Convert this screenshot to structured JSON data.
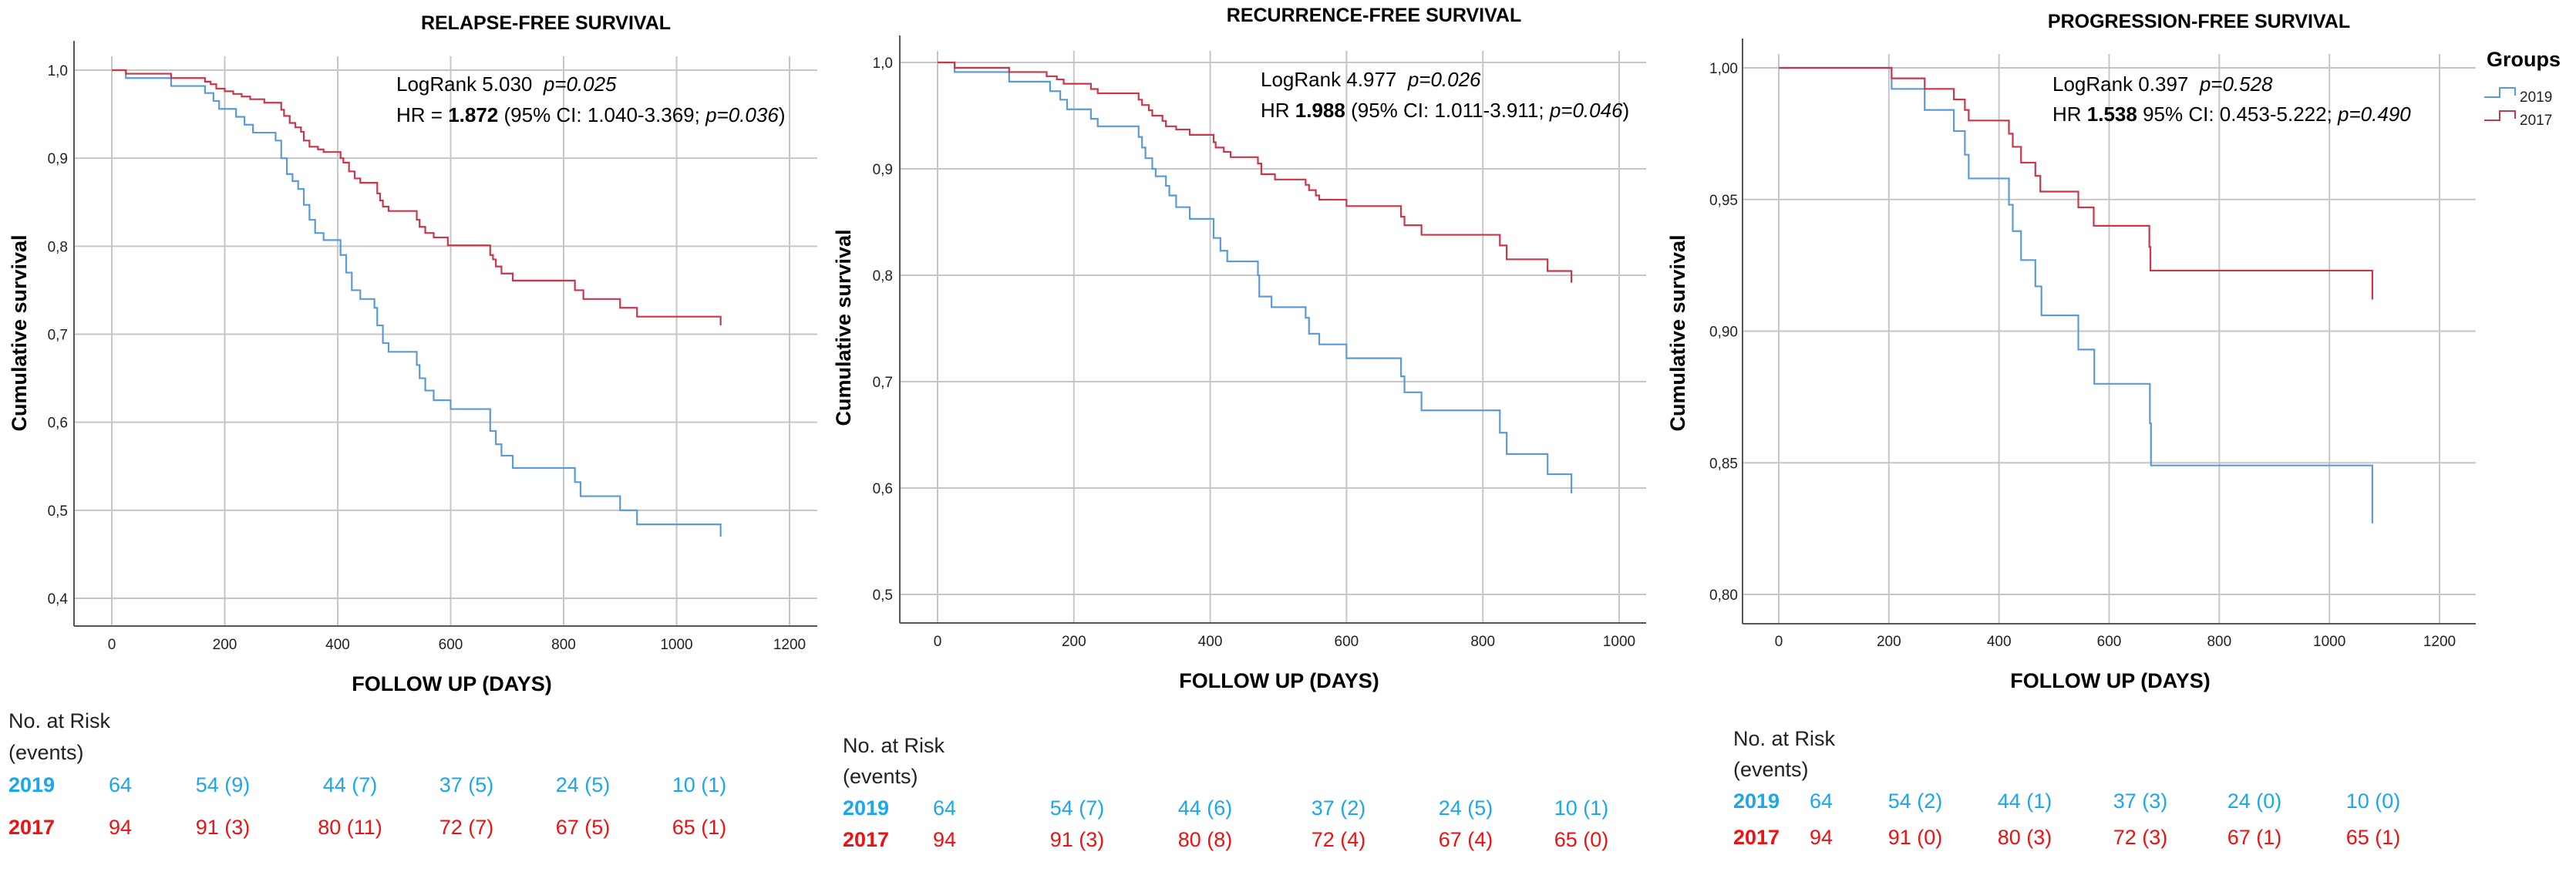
{
  "chart_data": [
    {
      "type": "line",
      "subtype": "kaplan-meier step",
      "title": "RELAPSE-FREE SURVIVAL",
      "xlabel": "FOLLOW UP (DAYS)",
      "ylabel": "Cumulative survival",
      "xlim": [
        0,
        1200
      ],
      "ylim": [
        0.4,
        1.0
      ],
      "xticks": [
        "0",
        "200",
        "400",
        "600",
        "800",
        "1000",
        "1200"
      ],
      "xtick_values": [
        0,
        200,
        400,
        600,
        800,
        1000,
        1200
      ],
      "yticks": [
        "1,0",
        "0,9",
        "0,8",
        "0,7",
        "0,6",
        "0,5",
        "0,4"
      ],
      "ytick_values": [
        1.0,
        0.9,
        0.8,
        0.7,
        0.6,
        0.5,
        0.4
      ],
      "grid": true,
      "annotation": [
        [
          {
            "t": "LogRank 5.030  "
          },
          {
            "t": "p=0.025",
            "i": true
          }
        ],
        [
          {
            "t": "HR = "
          },
          {
            "t": "1.872",
            "b": true
          },
          {
            "t": " (95% CI: 1.040-3.369; "
          },
          {
            "t": "p=0.036",
            "i": true
          },
          {
            "t": ")"
          }
        ]
      ],
      "series": [
        {
          "name": "2019",
          "color": "#5b9bd5",
          "end": [
            1078,
            0.47
          ],
          "steps": [
            [
              0,
              1.0
            ],
            [
              25,
              0.991
            ],
            [
              105,
              0.982
            ],
            [
              165,
              0.974
            ],
            [
              180,
              0.965
            ],
            [
              190,
              0.956
            ],
            [
              220,
              0.947
            ],
            [
              235,
              0.938
            ],
            [
              250,
              0.929
            ],
            [
              290,
              0.92
            ],
            [
              300,
              0.9
            ],
            [
              310,
              0.882
            ],
            [
              320,
              0.874
            ],
            [
              330,
              0.865
            ],
            [
              340,
              0.847
            ],
            [
              350,
              0.83
            ],
            [
              360,
              0.815
            ],
            [
              375,
              0.807
            ],
            [
              405,
              0.79
            ],
            [
              415,
              0.77
            ],
            [
              425,
              0.75
            ],
            [
              440,
              0.74
            ],
            [
              465,
              0.73
            ],
            [
              470,
              0.71
            ],
            [
              480,
              0.69
            ],
            [
              490,
              0.68
            ],
            [
              540,
              0.665
            ],
            [
              545,
              0.65
            ],
            [
              555,
              0.636
            ],
            [
              570,
              0.625
            ],
            [
              600,
              0.615
            ],
            [
              670,
              0.59
            ],
            [
              680,
              0.575
            ],
            [
              690,
              0.562
            ],
            [
              710,
              0.548
            ],
            [
              820,
              0.532
            ],
            [
              830,
              0.516
            ],
            [
              900,
              0.5
            ],
            [
              930,
              0.484
            ],
            [
              1078,
              0.484
            ]
          ]
        },
        {
          "name": "2017",
          "color": "#c8374a",
          "end": [
            1078,
            0.71
          ],
          "steps": [
            [
              0,
              1.0
            ],
            [
              25,
              0.996
            ],
            [
              105,
              0.991
            ],
            [
              165,
              0.987
            ],
            [
              175,
              0.984
            ],
            [
              185,
              0.979
            ],
            [
              200,
              0.976
            ],
            [
              215,
              0.973
            ],
            [
              230,
              0.97
            ],
            [
              245,
              0.967
            ],
            [
              270,
              0.963
            ],
            [
              300,
              0.955
            ],
            [
              305,
              0.948
            ],
            [
              315,
              0.94
            ],
            [
              325,
              0.935
            ],
            [
              335,
              0.93
            ],
            [
              340,
              0.92
            ],
            [
              350,
              0.913
            ],
            [
              365,
              0.91
            ],
            [
              375,
              0.907
            ],
            [
              405,
              0.9
            ],
            [
              410,
              0.895
            ],
            [
              420,
              0.885
            ],
            [
              430,
              0.877
            ],
            [
              440,
              0.872
            ],
            [
              470,
              0.86
            ],
            [
              475,
              0.852
            ],
            [
              480,
              0.845
            ],
            [
              490,
              0.84
            ],
            [
              540,
              0.83
            ],
            [
              545,
              0.822
            ],
            [
              555,
              0.815
            ],
            [
              570,
              0.81
            ],
            [
              595,
              0.801
            ],
            [
              670,
              0.79
            ],
            [
              675,
              0.785
            ],
            [
              680,
              0.777
            ],
            [
              690,
              0.769
            ],
            [
              710,
              0.761
            ],
            [
              820,
              0.75
            ],
            [
              835,
              0.74
            ],
            [
              900,
              0.73
            ],
            [
              930,
              0.72
            ],
            [
              1078,
              0.72
            ]
          ]
        }
      ],
      "risk_table": {
        "header": "No. at Risk",
        "subheader": "(events)",
        "rows": [
          {
            "group": "2019",
            "color": "#1aa7ec",
            "values": [
              "64",
              "54 (9)",
              "44 (7)",
              "37 (5)",
              "24 (5)",
              "10 (1)"
            ]
          },
          {
            "group": "2017",
            "color": "#ee1111",
            "values": [
              "94",
              "91 (3)",
              "80 (11)",
              "72 (7)",
              "67 (5)",
              "65 (1)"
            ]
          }
        ]
      }
    },
    {
      "type": "line",
      "subtype": "kaplan-meier step",
      "title": "RECURRENCE-FREE SURVIVAL",
      "xlabel": "FOLLOW UP (DAYS)",
      "ylabel": "Cumulative survival",
      "xlim": [
        0,
        1000
      ],
      "ylim": [
        0.5,
        1.0
      ],
      "xticks": [
        "0",
        "200",
        "400",
        "600",
        "800",
        "1000"
      ],
      "xtick_values": [
        0,
        200,
        400,
        600,
        800,
        1000
      ],
      "yticks": [
        "1,0",
        "0,9",
        "0,8",
        "0,7",
        "0,6",
        "0,5"
      ],
      "ytick_values": [
        1.0,
        0.9,
        0.8,
        0.7,
        0.6,
        0.5
      ],
      "grid": true,
      "annotation": [
        [
          {
            "t": "LogRank 4.977  "
          },
          {
            "t": "p=0.026",
            "i": true
          }
        ],
        [
          {
            "t": "HR "
          },
          {
            "t": "1.988",
            "b": true
          },
          {
            "t": " (95% CI: 1.011-3.911; "
          },
          {
            "t": "p=0.046",
            "i": true
          },
          {
            "t": ")"
          }
        ]
      ],
      "series": [
        {
          "name": "2019",
          "color": "#5b9bd5",
          "end": [
            930,
            0.595
          ],
          "steps": [
            [
              0,
              1.0
            ],
            [
              25,
              0.991
            ],
            [
              105,
              0.982
            ],
            [
              165,
              0.973
            ],
            [
              180,
              0.965
            ],
            [
              190,
              0.956
            ],
            [
              225,
              0.947
            ],
            [
              235,
              0.94
            ],
            [
              295,
              0.93
            ],
            [
              300,
              0.92
            ],
            [
              305,
              0.91
            ],
            [
              315,
              0.9
            ],
            [
              320,
              0.893
            ],
            [
              335,
              0.884
            ],
            [
              340,
              0.875
            ],
            [
              350,
              0.864
            ],
            [
              370,
              0.853
            ],
            [
              405,
              0.835
            ],
            [
              415,
              0.823
            ],
            [
              425,
              0.813
            ],
            [
              470,
              0.8
            ],
            [
              472,
              0.78
            ],
            [
              490,
              0.77
            ],
            [
              540,
              0.76
            ],
            [
              545,
              0.745
            ],
            [
              560,
              0.735
            ],
            [
              600,
              0.722
            ],
            [
              680,
              0.705
            ],
            [
              685,
              0.69
            ],
            [
              710,
              0.673
            ],
            [
              825,
              0.652
            ],
            [
              835,
              0.632
            ],
            [
              895,
              0.613
            ],
            [
              930,
              0.613
            ]
          ]
        },
        {
          "name": "2017",
          "color": "#c8374a",
          "end": [
            930,
            0.793
          ],
          "steps": [
            [
              0,
              1.0
            ],
            [
              25,
              0.995
            ],
            [
              105,
              0.991
            ],
            [
              160,
              0.987
            ],
            [
              175,
              0.984
            ],
            [
              185,
              0.98
            ],
            [
              225,
              0.975
            ],
            [
              235,
              0.971
            ],
            [
              295,
              0.965
            ],
            [
              300,
              0.96
            ],
            [
              310,
              0.955
            ],
            [
              315,
              0.95
            ],
            [
              330,
              0.945
            ],
            [
              335,
              0.94
            ],
            [
              350,
              0.937
            ],
            [
              370,
              0.932
            ],
            [
              405,
              0.925
            ],
            [
              408,
              0.92
            ],
            [
              420,
              0.916
            ],
            [
              430,
              0.911
            ],
            [
              470,
              0.905
            ],
            [
              475,
              0.895
            ],
            [
              495,
              0.89
            ],
            [
              540,
              0.885
            ],
            [
              545,
              0.88
            ],
            [
              555,
              0.875
            ],
            [
              560,
              0.871
            ],
            [
              600,
              0.865
            ],
            [
              680,
              0.855
            ],
            [
              685,
              0.847
            ],
            [
              710,
              0.838
            ],
            [
              825,
              0.828
            ],
            [
              835,
              0.815
            ],
            [
              895,
              0.804
            ],
            [
              930,
              0.804
            ]
          ]
        }
      ],
      "risk_table": {
        "header": "No. at Risk",
        "subheader": "(events)",
        "rows": [
          {
            "group": "2019",
            "color": "#1aa7ec",
            "values": [
              "64",
              "54 (7)",
              "44 (6)",
              "37 (2)",
              "24 (5)",
              "10 (1)"
            ]
          },
          {
            "group": "2017",
            "color": "#ee1111",
            "values": [
              "94",
              "91 (3)",
              "80 (8)",
              "72 (4)",
              "67 (4)",
              "65 (0)"
            ]
          }
        ]
      }
    },
    {
      "type": "line",
      "subtype": "kaplan-meier step",
      "title": "PROGRESSION-FREE SURVIVAL",
      "xlabel": "FOLLOW UP (DAYS)",
      "ylabel": "Cumulative survival",
      "xlim": [
        0,
        1200
      ],
      "ylim": [
        0.8,
        1.0
      ],
      "xticks": [
        "0",
        "200",
        "400",
        "600",
        "800",
        "1000",
        "1200"
      ],
      "xtick_values": [
        0,
        200,
        400,
        600,
        800,
        1000,
        1200
      ],
      "yticks": [
        "1,00",
        "0,95",
        "0,90",
        "0,85",
        "0,80"
      ],
      "ytick_values": [
        1.0,
        0.95,
        0.9,
        0.85,
        0.8
      ],
      "grid": true,
      "legend": {
        "title": "Groups",
        "placement": "top-right",
        "entries": [
          "2019",
          "2017"
        ]
      },
      "annotation": [
        [
          {
            "t": "LogRank 0.397  "
          },
          {
            "t": "p=0.528",
            "i": true
          }
        ],
        [
          {
            "t": "HR "
          },
          {
            "t": "1.538",
            "b": true
          },
          {
            "t": " 95% CI: 0.453-5.222; "
          },
          {
            "t": "p=0.490",
            "i": true
          }
        ]
      ],
      "series": [
        {
          "name": "2019",
          "color": "#5b9bd5",
          "end": [
            1078,
            0.827
          ],
          "steps": [
            [
              0,
              1.0
            ],
            [
              205,
              0.992
            ],
            [
              265,
              0.984
            ],
            [
              318,
              0.976
            ],
            [
              338,
              0.967
            ],
            [
              345,
              0.958
            ],
            [
              418,
              0.948
            ],
            [
              425,
              0.938
            ],
            [
              440,
              0.927
            ],
            [
              466,
              0.917
            ],
            [
              477,
              0.906
            ],
            [
              544,
              0.893
            ],
            [
              573,
              0.88
            ],
            [
              674,
              0.865
            ],
            [
              676,
              0.849
            ],
            [
              1078,
              0.849
            ]
          ]
        },
        {
          "name": "2017",
          "color": "#c8374a",
          "end": [
            1078,
            0.912
          ],
          "steps": [
            [
              0,
              1.0
            ],
            [
              205,
              0.996
            ],
            [
              265,
              0.992
            ],
            [
              318,
              0.988
            ],
            [
              338,
              0.984
            ],
            [
              345,
              0.98
            ],
            [
              418,
              0.975
            ],
            [
              425,
              0.97
            ],
            [
              440,
              0.964
            ],
            [
              466,
              0.959
            ],
            [
              475,
              0.953
            ],
            [
              544,
              0.947
            ],
            [
              572,
              0.94
            ],
            [
              673,
              0.932
            ],
            [
              675,
              0.923
            ],
            [
              1078,
              0.923
            ]
          ]
        }
      ],
      "risk_table": {
        "header": "No. at Risk",
        "subheader": "(events)",
        "rows": [
          {
            "group": "2019",
            "color": "#1aa7ec",
            "values": [
              "64",
              "54 (2)",
              "44 (1)",
              "37 (3)",
              "24 (0)",
              "10 (0)"
            ]
          },
          {
            "group": "2017",
            "color": "#ee1111",
            "values": [
              "94",
              "91 (0)",
              "80 (3)",
              "72 (3)",
              "67 (1)",
              "65 (1)"
            ]
          }
        ]
      }
    }
  ]
}
